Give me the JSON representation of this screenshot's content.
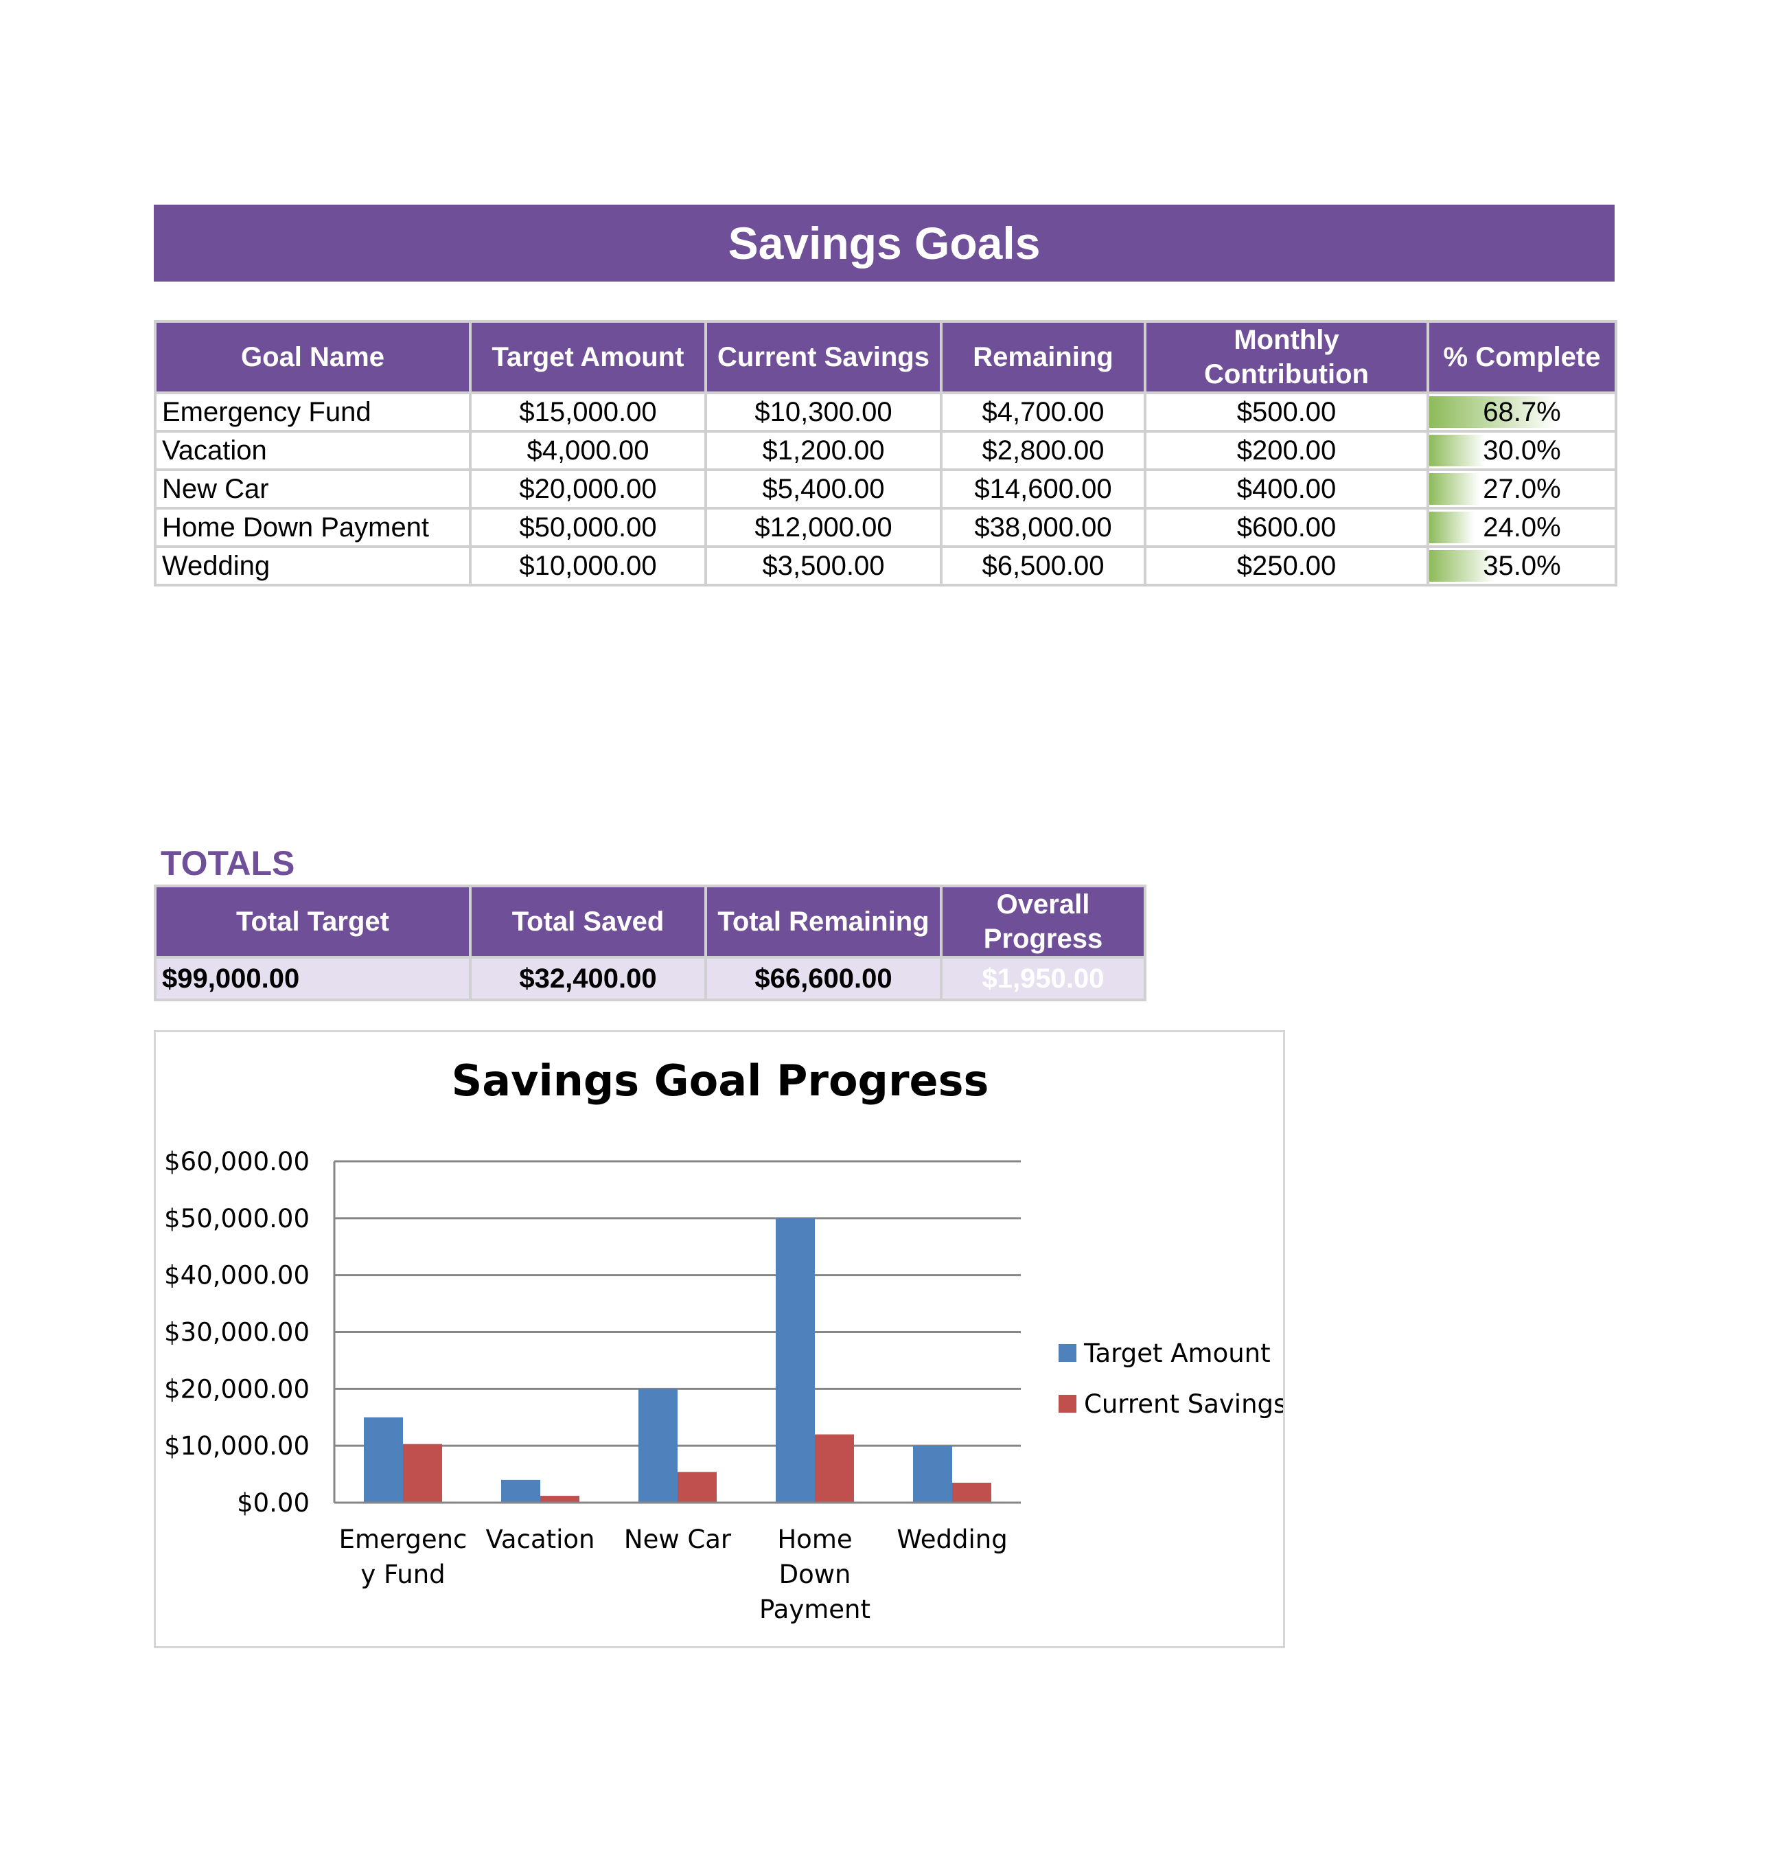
{
  "header": {
    "title": "Savings Goals"
  },
  "goals_table": {
    "columns": [
      "Goal Name",
      "Target Amount",
      "Current Savings",
      "Remaining",
      "Monthly Contribution",
      "% Complete"
    ],
    "rows": [
      {
        "name": "Emergency Fund",
        "target": "$15,000.00",
        "current": "$10,300.00",
        "remaining": "$4,700.00",
        "monthly": "$500.00",
        "pct": "68.7%",
        "pct_value": 0.687
      },
      {
        "name": "Vacation",
        "target": "$4,000.00",
        "current": "$1,200.00",
        "remaining": "$2,800.00",
        "monthly": "$200.00",
        "pct": "30.0%",
        "pct_value": 0.3
      },
      {
        "name": "New Car",
        "target": "$20,000.00",
        "current": "$5,400.00",
        "remaining": "$14,600.00",
        "monthly": "$400.00",
        "pct": "27.0%",
        "pct_value": 0.27
      },
      {
        "name": "Home Down Payment",
        "target": "$50,000.00",
        "current": "$12,000.00",
        "remaining": "$38,000.00",
        "monthly": "$600.00",
        "pct": "24.0%",
        "pct_value": 0.24
      },
      {
        "name": "Wedding",
        "target": "$10,000.00",
        "current": "$3,500.00",
        "remaining": "$6,500.00",
        "monthly": "$250.00",
        "pct": "35.0%",
        "pct_value": 0.35
      }
    ]
  },
  "totals": {
    "label": "TOTALS",
    "columns": [
      "Total Target",
      "Total Saved",
      "Total Remaining",
      "Overall Progress"
    ],
    "values": [
      "$99,000.00",
      "$32,400.00",
      "$66,600.00",
      "$1,950.00"
    ]
  },
  "colors": {
    "accent": "#6f5098",
    "totals_row_bg": "#e6dff0",
    "progress_bar": "#8dbb5a",
    "series_target": "#4f81bd",
    "series_current": "#c0504d"
  },
  "chart_data": {
    "type": "bar",
    "title": "Savings Goal Progress",
    "categories": [
      "Emergency Fund",
      "Vacation",
      "New Car",
      "Home Down Payment",
      "Wedding"
    ],
    "category_label_lines": [
      [
        "Emergenc",
        "y Fund"
      ],
      [
        "Vacation"
      ],
      [
        "New Car"
      ],
      [
        "Home",
        "Down",
        "Payment"
      ],
      [
        "Wedding"
      ]
    ],
    "series": [
      {
        "name": "Target Amount",
        "values": [
          15000,
          4000,
          20000,
          50000,
          10000
        ]
      },
      {
        "name": "Current Savings",
        "values": [
          10300,
          1200,
          5400,
          12000,
          3500
        ]
      }
    ],
    "ylim": [
      0,
      60000
    ],
    "yticks": [
      "$0.00",
      "$10,000.00",
      "$20,000.00",
      "$30,000.00",
      "$40,000.00",
      "$50,000.00",
      "$60,000.00"
    ],
    "ytick_values": [
      0,
      10000,
      20000,
      30000,
      40000,
      50000,
      60000
    ],
    "xlabel": "",
    "ylabel": "",
    "grid": true,
    "legend_position": "right"
  }
}
